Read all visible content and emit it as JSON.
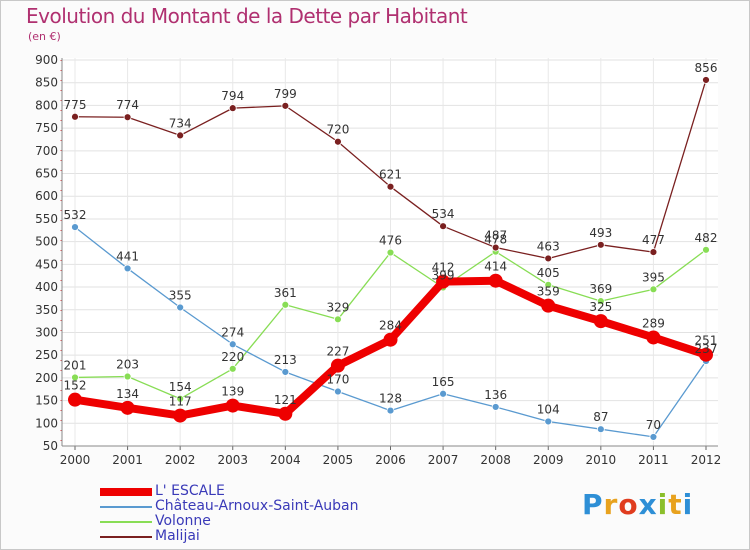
{
  "header": {
    "title": "Evolution du Montant de la Dette par Habitant",
    "subtitle": "(en €)"
  },
  "logo": {
    "text": "Proxiti",
    "letters": [
      "P",
      "r",
      "o",
      "x",
      "i",
      "t",
      "i"
    ],
    "letter_colors": [
      "#2e8fd6",
      "#e8a21e",
      "#e03c1e",
      "#2e8fd6",
      "#8bbf2b",
      "#e8a21e",
      "#2e8fd6"
    ]
  },
  "chart_data": {
    "type": "line",
    "title": "Evolution du Montant de la Dette par Habitant",
    "subtitle": "(en €)",
    "xlabel": "",
    "ylabel": "",
    "x": [
      "2000",
      "2001",
      "2002",
      "2003",
      "2004",
      "2005",
      "2006",
      "2007",
      "2008",
      "2009",
      "2010",
      "2011",
      "2012"
    ],
    "ylim": [
      50,
      900
    ],
    "yticks": [
      50,
      100,
      150,
      200,
      250,
      300,
      350,
      400,
      450,
      500,
      550,
      600,
      650,
      700,
      750,
      800,
      850,
      900
    ],
    "grid": true,
    "legend_position": "bottom-left",
    "series": [
      {
        "name": "L' ESCALE",
        "color": "#ee0000",
        "values": [
          152,
          134,
          117,
          139,
          121,
          227,
          284,
          412,
          414,
          359,
          325,
          289,
          251
        ]
      },
      {
        "name": "Château-Arnoux-Saint-Auban",
        "color": "#5a9ad0",
        "values": [
          532,
          441,
          355,
          274,
          213,
          170,
          128,
          165,
          136,
          104,
          87,
          70,
          237
        ]
      },
      {
        "name": "Volonne",
        "color": "#88dd55",
        "values": [
          201,
          203,
          154,
          220,
          361,
          329,
          476,
          399,
          478,
          405,
          369,
          395,
          482
        ]
      },
      {
        "name": "Malijai",
        "color": "#7a2020",
        "values": [
          775,
          774,
          734,
          794,
          799,
          720,
          621,
          534,
          487,
          463,
          493,
          477,
          856
        ]
      }
    ]
  }
}
